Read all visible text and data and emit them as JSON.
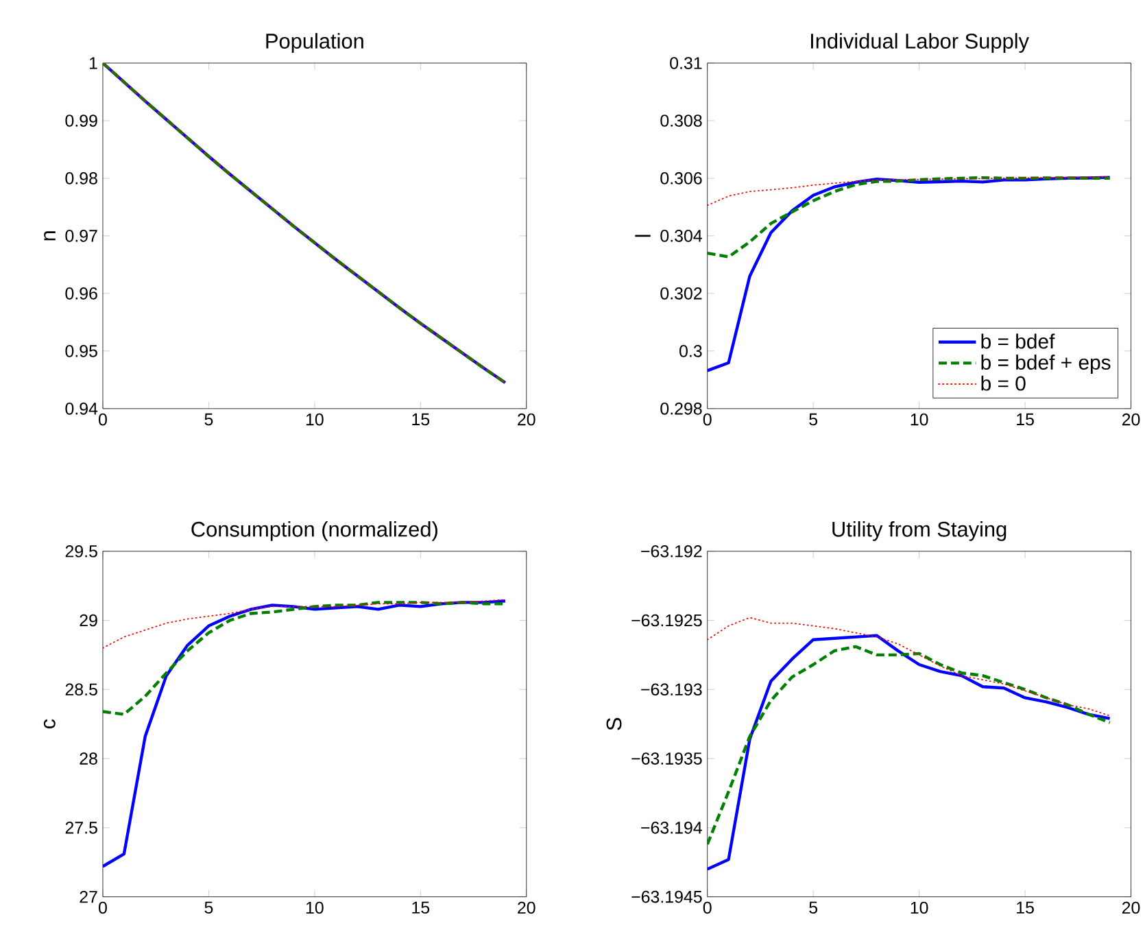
{
  "chart_data": [
    {
      "type": "line",
      "title": "Population",
      "ylabel": "n",
      "xlim": [
        0,
        20
      ],
      "xticks": [
        0,
        5,
        10,
        15,
        20
      ],
      "ylim": [
        0.94,
        1
      ],
      "yticks": [
        0.94,
        0.95,
        0.96,
        0.97,
        0.98,
        0.99,
        1
      ],
      "grid": false,
      "marker": "none",
      "x": [
        0,
        1,
        2,
        3,
        4,
        5,
        6,
        7,
        8,
        9,
        10,
        11,
        12,
        13,
        14,
        15,
        16,
        17,
        18,
        19
      ],
      "series": [
        {
          "color": "#0000ff",
          "line_style": "solid",
          "values": [
            1,
            0.9967,
            0.9934,
            0.9902,
            0.987,
            0.9838,
            0.9807,
            0.9777,
            0.9747,
            0.9717,
            0.9688,
            0.9659,
            0.9631,
            0.9603,
            0.9575,
            0.9548,
            0.9522,
            0.9496,
            0.947,
            0.9445
          ]
        },
        {
          "color": "#007f00",
          "line_style": "dashed",
          "values": [
            1,
            0.9967,
            0.9934,
            0.9902,
            0.987,
            0.9838,
            0.9807,
            0.9777,
            0.9747,
            0.9717,
            0.9688,
            0.9659,
            0.9631,
            0.9603,
            0.9575,
            0.9548,
            0.9522,
            0.9496,
            0.947,
            0.9445
          ]
        },
        {
          "color": "#ff0000",
          "line_style": "dotted",
          "values": [
            1,
            0.9967,
            0.9934,
            0.9902,
            0.987,
            0.9838,
            0.9807,
            0.9777,
            0.9747,
            0.9717,
            0.9688,
            0.9659,
            0.9631,
            0.9603,
            0.9575,
            0.9548,
            0.9522,
            0.9496,
            0.947,
            0.9445
          ]
        }
      ]
    },
    {
      "type": "line",
      "title": "Individual Labor Supply",
      "ylabel": "l",
      "xlim": [
        0,
        20
      ],
      "xticks": [
        0,
        5,
        10,
        15,
        20
      ],
      "ylim": [
        0.298,
        0.31
      ],
      "yticks": [
        0.298,
        0.3,
        0.302,
        0.304,
        0.306,
        0.308,
        0.31
      ],
      "grid": false,
      "marker": "none",
      "legend": "bottom right",
      "x": [
        0,
        1,
        2,
        3,
        4,
        5,
        6,
        7,
        8,
        9,
        10,
        11,
        12,
        13,
        14,
        15,
        16,
        17,
        18,
        19
      ],
      "series": [
        {
          "name": "b = bdef",
          "color": "#0000ff",
          "line_style": "solid",
          "values": [
            0.29932,
            0.29959,
            0.3026,
            0.30411,
            0.30487,
            0.30541,
            0.3057,
            0.30586,
            0.30597,
            0.30592,
            0.30586,
            0.30588,
            0.3059,
            0.30587,
            0.30594,
            0.30594,
            0.30598,
            0.306,
            0.30601,
            0.30603
          ]
        },
        {
          "name": "b = bdef + eps",
          "color": "#007f00",
          "line_style": "dashed",
          "values": [
            0.3034,
            0.30327,
            0.30379,
            0.30443,
            0.30483,
            0.30522,
            0.30554,
            0.30578,
            0.30589,
            0.3059,
            0.30595,
            0.30598,
            0.306,
            0.30602,
            0.306,
            0.306,
            0.30601,
            0.30601,
            0.306,
            0.306
          ]
        },
        {
          "name": "b = 0",
          "color": "#ff0000",
          "line_style": "dotted",
          "values": [
            0.30506,
            0.30538,
            0.30554,
            0.3056,
            0.30567,
            0.30576,
            0.30583,
            0.30589,
            0.30594,
            0.30595,
            0.30596,
            0.30597,
            0.30598,
            0.30599,
            0.306,
            0.30601,
            0.30602,
            0.30603,
            0.30604,
            0.30605
          ]
        }
      ]
    },
    {
      "type": "line",
      "title": "Consumption (normalized)",
      "ylabel": "c",
      "xlim": [
        0,
        20
      ],
      "xticks": [
        0,
        5,
        10,
        15,
        20
      ],
      "ylim": [
        27,
        29.5
      ],
      "yticks": [
        27,
        27.5,
        28,
        28.5,
        29,
        29.5
      ],
      "grid": false,
      "marker": "none",
      "x": [
        0,
        1,
        2,
        3,
        4,
        5,
        6,
        7,
        8,
        9,
        10,
        11,
        12,
        13,
        14,
        15,
        16,
        17,
        18,
        19
      ],
      "series": [
        {
          "color": "#0000ff",
          "line_style": "solid",
          "values": [
            27.22,
            27.31,
            28.16,
            28.6,
            28.82,
            28.96,
            29.03,
            29.08,
            29.11,
            29.1,
            29.08,
            29.09,
            29.1,
            29.08,
            29.11,
            29.1,
            29.12,
            29.13,
            29.13,
            29.14
          ]
        },
        {
          "color": "#007f00",
          "line_style": "dashed",
          "values": [
            28.34,
            28.32,
            28.45,
            28.62,
            28.78,
            28.91,
            29.0,
            29.05,
            29.06,
            29.08,
            29.1,
            29.11,
            29.11,
            29.13,
            29.13,
            29.13,
            29.12,
            29.13,
            29.12,
            29.12
          ]
        },
        {
          "color": "#ff0000",
          "line_style": "dotted",
          "values": [
            28.8,
            28.88,
            28.93,
            28.98,
            29.01,
            29.03,
            29.05,
            29.08,
            29.1,
            29.1,
            29.1,
            29.1,
            29.11,
            29.12,
            29.12,
            29.13,
            29.13,
            29.13,
            29.14,
            29.15
          ]
        }
      ]
    },
    {
      "type": "line",
      "title": "Utility from Staying",
      "ylabel": "S",
      "xlim": [
        0,
        20
      ],
      "xticks": [
        0,
        5,
        10,
        15,
        20
      ],
      "ylim": [
        -63.1945,
        -63.192
      ],
      "yticks": [
        {
          "value": -63.1945,
          "label": "−63.1945"
        },
        {
          "value": -63.194,
          "label": "−63.194"
        },
        {
          "value": -63.1935,
          "label": "−63.1935"
        },
        {
          "value": -63.193,
          "label": "−63.193"
        },
        {
          "value": -63.1925,
          "label": "−63.1925"
        },
        {
          "value": -63.192,
          "label": "−63.192"
        }
      ],
      "grid": false,
      "marker": "none",
      "x": [
        0,
        1,
        2,
        3,
        4,
        5,
        6,
        7,
        8,
        9,
        10,
        11,
        12,
        13,
        14,
        15,
        16,
        17,
        18,
        19
      ],
      "series": [
        {
          "color": "#0000ff",
          "line_style": "solid",
          "values": [
            -63.1943,
            -63.19423,
            -63.19336,
            -63.19294,
            -63.19278,
            -63.19264,
            -63.19263,
            -63.19262,
            -63.19261,
            -63.19272,
            -63.19282,
            -63.19287,
            -63.1929,
            -63.19298,
            -63.19299,
            -63.19306,
            -63.19309,
            -63.19313,
            -63.19318,
            -63.19321
          ]
        },
        {
          "color": "#007f00",
          "line_style": "dashed",
          "values": [
            -63.19412,
            -63.19374,
            -63.19334,
            -63.19308,
            -63.19291,
            -63.19282,
            -63.19272,
            -63.19269,
            -63.19275,
            -63.19275,
            -63.19274,
            -63.19282,
            -63.19288,
            -63.1929,
            -63.19295,
            -63.193,
            -63.19306,
            -63.19311,
            -63.19318,
            -63.19324
          ]
        },
        {
          "color": "#ff0000",
          "line_style": "dotted",
          "values": [
            -63.19264,
            -63.19254,
            -63.19248,
            -63.19252,
            -63.19252,
            -63.19254,
            -63.19256,
            -63.19259,
            -63.19262,
            -63.19267,
            -63.19275,
            -63.19283,
            -63.1929,
            -63.19293,
            -63.19296,
            -63.19301,
            -63.19306,
            -63.19311,
            -63.19314,
            -63.19319
          ]
        }
      ]
    }
  ]
}
